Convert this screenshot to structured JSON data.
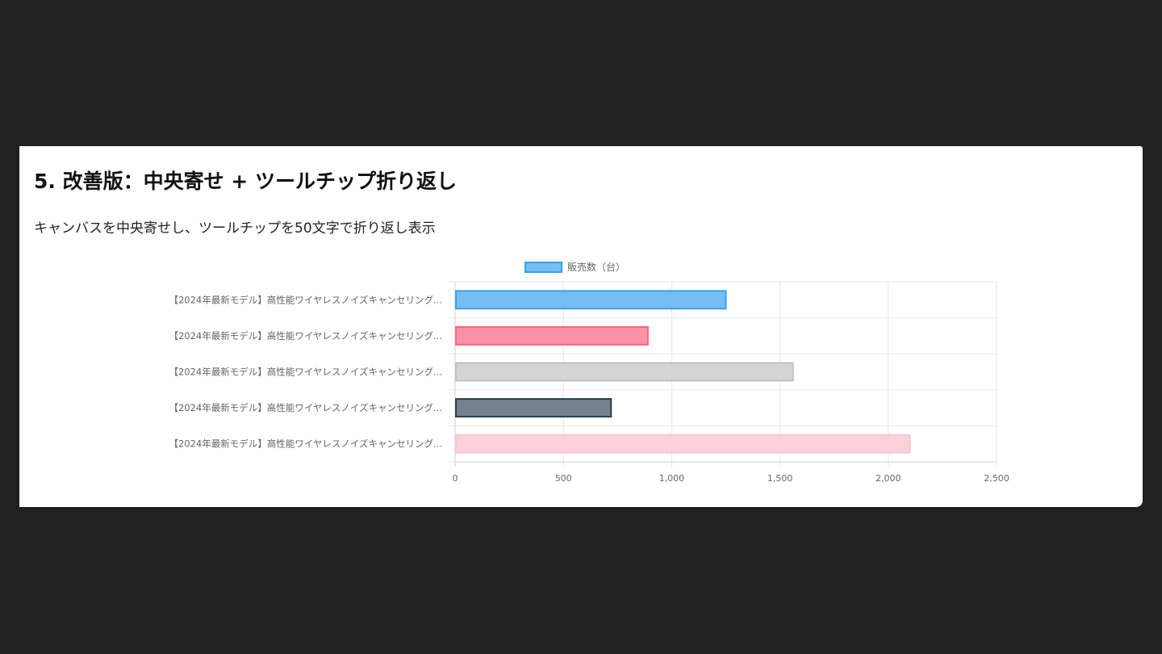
{
  "section": {
    "title": "5. 改善版：中央寄せ + ツールチップ折り返し",
    "description": "キャンバスを中央寄せし、ツールチップを50文字で折り返し表示"
  },
  "chart_data": {
    "type": "bar",
    "orientation": "horizontal",
    "categories": [
      "【2024年最新モデル】高性能ワイヤレスノイズキャンセリング...",
      "【2024年最新モデル】高性能ワイヤレスノイズキャンセリング...",
      "【2024年最新モデル】高性能ワイヤレスノイズキャンセリング...",
      "【2024年最新モデル】高性能ワイヤレスノイズキャンセリング...",
      "【2024年最新モデル】高性能ワイヤレスノイズキャンセリング..."
    ],
    "series": [
      {
        "name": "販売数（台）",
        "values": [
          1250,
          890,
          1560,
          720,
          2100
        ]
      }
    ],
    "bar_colors": [
      {
        "fill": "#75bdf2",
        "stroke": "#36a2eb"
      },
      {
        "fill": "#fa91a9",
        "stroke": "#ff6384"
      },
      {
        "fill": "#d4d4d4",
        "stroke": "#c2c2c2"
      },
      {
        "fill": "#76808e",
        "stroke": "#2c3e50"
      },
      {
        "fill": "#fbd2da",
        "stroke": "#f9c4d0"
      }
    ],
    "legend_swatch": {
      "fill": "#75bdf2",
      "stroke": "#36a2eb"
    },
    "xlim": [
      0,
      2500
    ],
    "x_ticks": [
      0,
      500,
      1000,
      1500,
      2000,
      2500
    ],
    "x_tick_labels": [
      "0",
      "500",
      "1,000",
      "1,500",
      "2,000",
      "2,500"
    ],
    "grid": true,
    "legend_position": "top"
  }
}
